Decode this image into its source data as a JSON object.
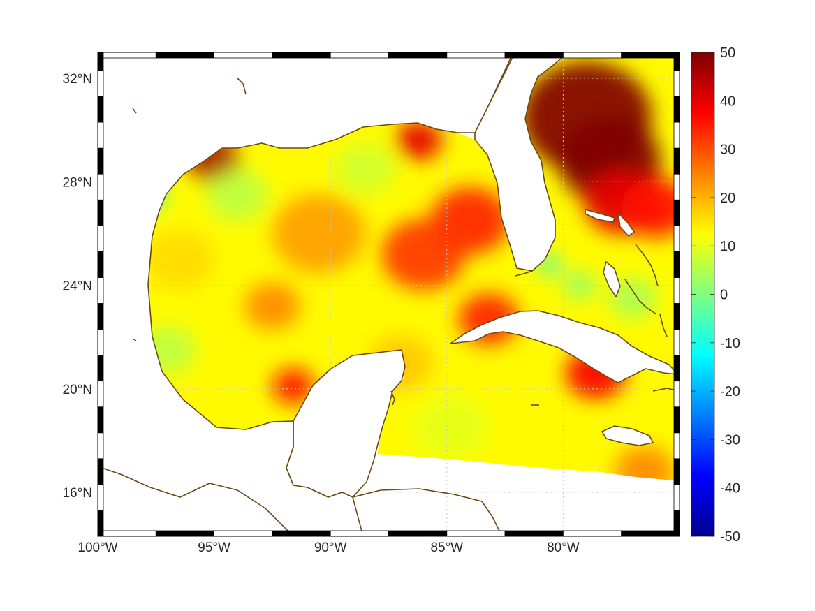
{
  "map": {
    "projection": "equirectangular",
    "lon_range": [
      -100,
      -75
    ],
    "lat_range": [
      14.3,
      33
    ],
    "lon_ticks": [
      {
        "value": -100,
        "label": "100°W"
      },
      {
        "value": -95,
        "label": "95°W"
      },
      {
        "value": -90,
        "label": "90°W"
      },
      {
        "value": -85,
        "label": "85°W"
      },
      {
        "value": -80,
        "label": "80°W"
      }
    ],
    "lat_ticks": [
      {
        "value": 32,
        "label": "32°N"
      },
      {
        "value": 28,
        "label": "28°N"
      },
      {
        "value": 24,
        "label": "24°N"
      },
      {
        "value": 20,
        "label": "20°N"
      },
      {
        "value": 16,
        "label": "16°N"
      }
    ],
    "coastline_color": "#6b4a12",
    "grid": true
  },
  "colorbar": {
    "min": -50,
    "max": 50,
    "colormap": "jet",
    "ticks": [
      {
        "value": 50,
        "label": "50"
      },
      {
        "value": 40,
        "label": "40"
      },
      {
        "value": 30,
        "label": "30"
      },
      {
        "value": 20,
        "label": "20"
      },
      {
        "value": 10,
        "label": "10"
      },
      {
        "value": 0,
        "label": "0"
      },
      {
        "value": -10,
        "label": "-10"
      },
      {
        "value": -20,
        "label": "-20"
      },
      {
        "value": -30,
        "label": "-30"
      },
      {
        "value": -40,
        "label": "-40"
      },
      {
        "value": -50,
        "label": "-50"
      }
    ]
  },
  "field_hotspots": [
    {
      "lon": -79.0,
      "lat": 30.5,
      "value": 55,
      "r_deg": 2.8
    },
    {
      "lon": -78.0,
      "lat": 28.8,
      "value": 50,
      "r_deg": 2.2
    },
    {
      "lon": -77.5,
      "lat": 27.2,
      "value": 40,
      "r_deg": 1.6
    },
    {
      "lon": -76.0,
      "lat": 27.0,
      "value": 36,
      "r_deg": 1.5
    },
    {
      "lon": -95.0,
      "lat": 28.8,
      "value": 46,
      "r_deg": 1.1
    },
    {
      "lon": -86.2,
      "lat": 29.6,
      "value": 40,
      "r_deg": 1.0
    },
    {
      "lon": -84.0,
      "lat": 26.5,
      "value": 34,
      "r_deg": 1.7
    },
    {
      "lon": -86.0,
      "lat": 25.2,
      "value": 32,
      "r_deg": 1.8
    },
    {
      "lon": -83.2,
      "lat": 22.7,
      "value": 34,
      "r_deg": 1.3
    },
    {
      "lon": -78.6,
      "lat": 20.6,
      "value": 38,
      "r_deg": 1.3
    },
    {
      "lon": -91.6,
      "lat": 20.1,
      "value": 36,
      "r_deg": 0.9
    },
    {
      "lon": -90.5,
      "lat": 26.0,
      "value": 22,
      "r_deg": 2.0
    },
    {
      "lon": -92.5,
      "lat": 23.2,
      "value": 24,
      "r_deg": 1.2
    },
    {
      "lon": -96.5,
      "lat": 25.0,
      "value": 16,
      "r_deg": 1.5
    },
    {
      "lon": -76.5,
      "lat": 16.8,
      "value": 24,
      "r_deg": 1.3
    },
    {
      "lon": -87.0,
      "lat": 21.0,
      "value": 18,
      "r_deg": 1.4
    },
    {
      "lon": -98.0,
      "lat": 27.5,
      "value": -4,
      "r_deg": 0.9
    },
    {
      "lon": -97.0,
      "lat": 21.5,
      "value": 6,
      "r_deg": 1.2
    },
    {
      "lon": -88.5,
      "lat": 28.5,
      "value": 8,
      "r_deg": 1.3
    },
    {
      "lon": -80.6,
      "lat": 24.8,
      "value": -6,
      "r_deg": 0.5
    },
    {
      "lon": -79.3,
      "lat": 24.0,
      "value": 2,
      "r_deg": 0.7
    },
    {
      "lon": -77.0,
      "lat": 23.5,
      "value": 4,
      "r_deg": 1.0
    },
    {
      "lon": -84.8,
      "lat": 18.5,
      "value": 10,
      "r_deg": 1.6
    },
    {
      "lon": -94.0,
      "lat": 27.5,
      "value": 6,
      "r_deg": 1.3
    }
  ]
}
